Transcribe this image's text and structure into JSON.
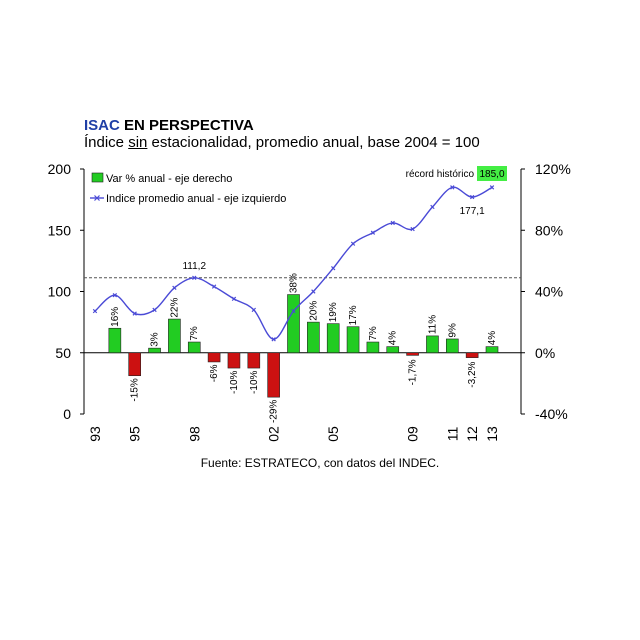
{
  "header": {
    "title_brand": "ISAC",
    "title_rest": " EN PERSPECTIVA",
    "subtitle_pre": "Índice ",
    "subtitle_underlined": "sin",
    "subtitle_post": " estacionalidad, promedio anual, base 2004 = 100"
  },
  "footer": {
    "source": "Fuente: ESTRATECO, con datos del INDEC."
  },
  "chart_data": {
    "type": "bar",
    "categories": [
      "1993",
      "1994",
      "1995",
      "1996",
      "1997",
      "1998",
      "1999",
      "2000",
      "2001",
      "2002",
      "2003",
      "2004",
      "2005",
      "2006",
      "2007",
      "2008",
      "2009",
      "2010",
      "2011",
      "2012",
      "2013"
    ],
    "x_tick_labels": [
      "93",
      "",
      "95",
      "",
      "",
      "98",
      "",
      "",
      "",
      "02",
      "",
      "",
      "05",
      "",
      "",
      "",
      "09",
      "",
      "11",
      "12",
      "13"
    ],
    "series": [
      {
        "name": "Var % anual - eje derecho",
        "axis": "right",
        "type": "bar",
        "color_pos": "#22cc22",
        "color_neg": "#cc1111",
        "values": [
          null,
          16,
          -15,
          3,
          22,
          7,
          -6,
          -10,
          -10,
          -29,
          38,
          20,
          19,
          17,
          7,
          4,
          -1.7,
          11,
          9,
          -3.2,
          4
        ],
        "labels": [
          "",
          "16%",
          "-15%",
          "3%",
          "22%",
          "7%",
          "-6%",
          "-10%",
          "-10%",
          "-29%",
          "38%",
          "20%",
          "19%",
          "17%",
          "7%",
          "4%",
          "-1,7%",
          "11%",
          "9%",
          "-3,2%",
          "4%"
        ]
      },
      {
        "name": "Indice promedio anual - eje izquierdo",
        "axis": "left",
        "type": "line",
        "color": "#4a4ad6",
        "values": [
          84,
          97,
          82,
          85,
          103,
          111.2,
          104,
          94,
          85,
          61,
          84,
          100,
          119,
          139,
          148,
          156,
          151,
          169,
          185,
          177.1,
          185
        ]
      }
    ],
    "y_left": {
      "ylim": [
        0,
        200
      ],
      "ticks": [
        "0",
        "50",
        "100",
        "150",
        "200"
      ]
    },
    "y_right": {
      "ylim": [
        -40,
        120
      ],
      "ticks": [
        "-40%",
        "0%",
        "40%",
        "80%",
        "120%"
      ]
    },
    "reference_line": {
      "value": 111.2,
      "axis": "left",
      "style": "dashed"
    },
    "annotations": [
      {
        "text": "111,2",
        "category": "1998",
        "value": 111.2
      },
      {
        "text": "177,1",
        "category": "2012",
        "value": 177.1
      }
    ],
    "record_box": {
      "label": "récord histórico",
      "value": "185,0",
      "color": "#44ee44"
    },
    "legend_position": "top-left",
    "grid": false
  }
}
